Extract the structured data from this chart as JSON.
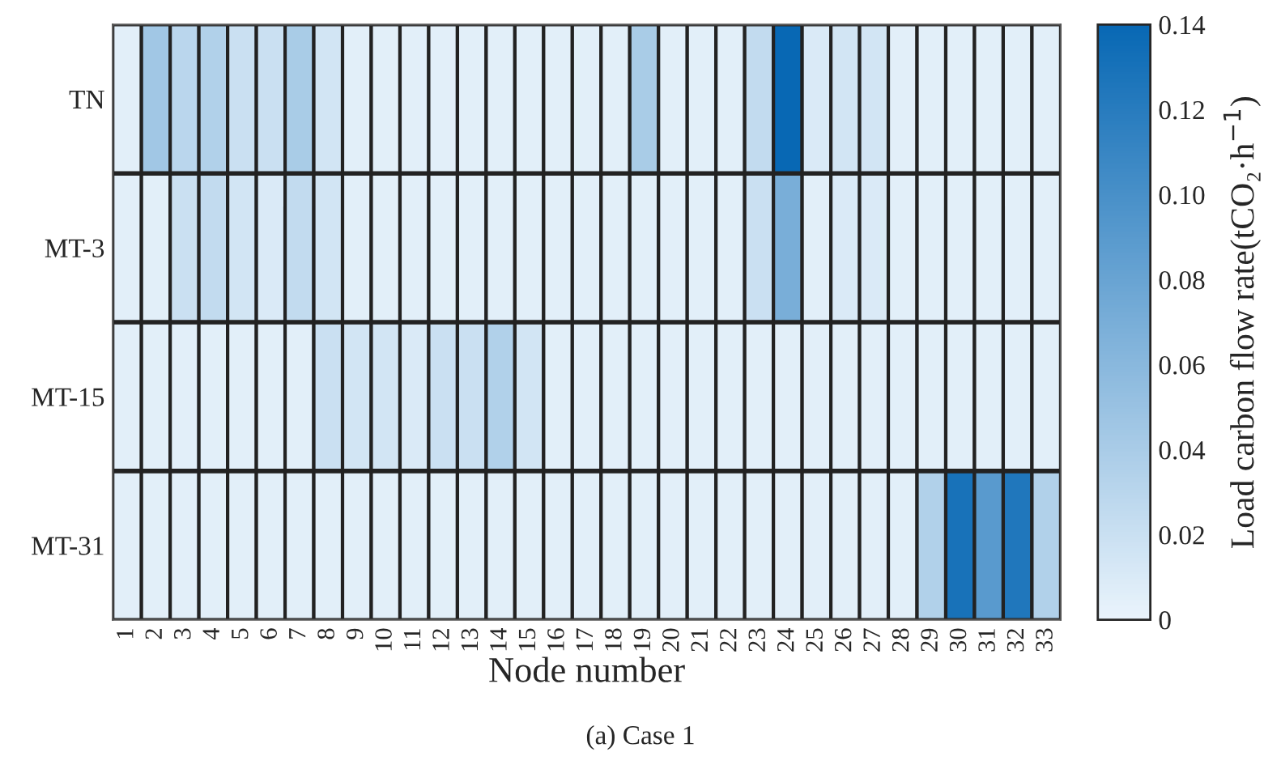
{
  "chart_data": {
    "type": "heatmap",
    "xlabel": "Node number",
    "clabel": "Load carbon flow rate(tCO₂·h$^{−1}$)",
    "annotations": [
      "(a) Case 1"
    ],
    "categories": [
      "1",
      "2",
      "3",
      "4",
      "5",
      "6",
      "7",
      "8",
      "9",
      "10",
      "11",
      "12",
      "13",
      "14",
      "15",
      "16",
      "17",
      "18",
      "19",
      "20",
      "21",
      "22",
      "23",
      "24",
      "25",
      "26",
      "27",
      "28",
      "29",
      "30",
      "31",
      "32",
      "33"
    ],
    "y_categories": [
      "TN",
      "MT-3",
      "MT-15",
      "MT-31"
    ],
    "cells": [
      [
        0.005,
        0.045,
        0.03,
        0.035,
        0.02,
        0.02,
        0.04,
        0.015,
        0.005,
        0.005,
        0.005,
        0.005,
        0.005,
        0.005,
        0.005,
        0.005,
        0.005,
        0.005,
        0.04,
        0.005,
        0.005,
        0.005,
        0.025,
        0.14,
        0.01,
        0.015,
        0.015,
        0.005,
        0.005,
        0.005,
        0.005,
        0.005,
        0.005
      ],
      [
        0.005,
        0.005,
        0.02,
        0.025,
        0.015,
        0.01,
        0.025,
        0.015,
        0.005,
        0.005,
        0.005,
        0.005,
        0.005,
        0.005,
        0.005,
        0.005,
        0.005,
        0.005,
        0.005,
        0.005,
        0.005,
        0.005,
        0.02,
        0.07,
        0.005,
        0.01,
        0.01,
        0.005,
        0.005,
        0.005,
        0.005,
        0.005,
        0.005
      ],
      [
        0.005,
        0.005,
        0.005,
        0.005,
        0.005,
        0.005,
        0.005,
        0.02,
        0.015,
        0.015,
        0.01,
        0.02,
        0.02,
        0.035,
        0.015,
        0.005,
        0.005,
        0.005,
        0.005,
        0.005,
        0.005,
        0.005,
        0.005,
        0.005,
        0.005,
        0.005,
        0.005,
        0.005,
        0.005,
        0.005,
        0.005,
        0.005,
        0.005
      ],
      [
        0.005,
        0.005,
        0.005,
        0.005,
        0.005,
        0.005,
        0.005,
        0.005,
        0.005,
        0.005,
        0.005,
        0.005,
        0.005,
        0.005,
        0.005,
        0.005,
        0.005,
        0.005,
        0.005,
        0.005,
        0.005,
        0.005,
        0.005,
        0.005,
        0.005,
        0.005,
        0.005,
        0.005,
        0.035,
        0.13,
        0.09,
        0.125,
        0.035
      ]
    ],
    "clim": [
      0,
      0.14
    ],
    "cticks": [
      {
        "value": 0,
        "label": "0"
      },
      {
        "value": 0.02,
        "label": "0.02"
      },
      {
        "value": 0.04,
        "label": "0.04"
      },
      {
        "value": 0.06,
        "label": "0.06"
      },
      {
        "value": 0.08,
        "label": "0.08"
      },
      {
        "value": 0.1,
        "label": "0.10"
      },
      {
        "value": 0.12,
        "label": "0.12"
      },
      {
        "value": 0.14,
        "label": "0.14"
      }
    ]
  }
}
